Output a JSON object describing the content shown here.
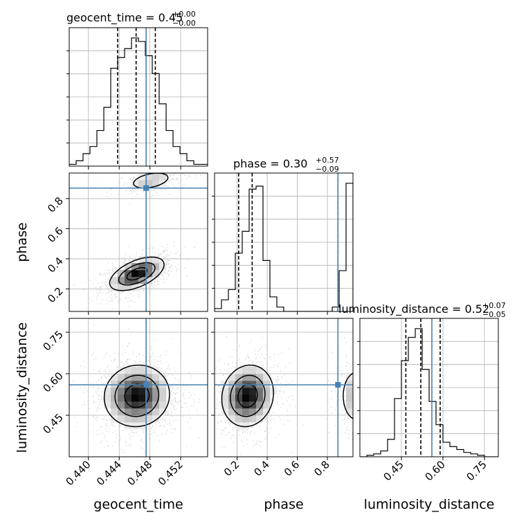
{
  "chart_data": {
    "type": "corner",
    "truth_color": "#4682b4",
    "contour_color": "#000000",
    "grid": true,
    "parameters": [
      {
        "name": "geocent_time",
        "label": "geocent_time",
        "title_prefix": "geocent_time = 0.45",
        "title_plus": "+0.00",
        "title_minus": "−0.00",
        "range": [
          0.4375,
          0.4555
        ],
        "ticks": [
          0.44,
          0.444,
          0.448,
          0.452
        ],
        "tick_labels": [
          "0.440",
          "0.444",
          "0.448",
          "0.452"
        ],
        "truth": 0.4475,
        "quantiles": [
          0.4438,
          0.4462,
          0.4487
        ],
        "hist": {
          "edges_start": 0.4375,
          "bin_width": 0.0009,
          "counts": [
            1,
            3,
            7,
            11,
            20,
            33,
            55,
            61,
            66,
            72,
            70,
            62,
            52,
            35,
            20,
            11,
            7,
            3,
            1,
            1
          ]
        }
      },
      {
        "name": "phase",
        "label": "phase",
        "title_prefix": "phase = 0.30",
        "title_plus": "+0.57",
        "title_minus": "−0.09",
        "range": [
          0.05,
          0.97
        ],
        "ticks": [
          0.2,
          0.4,
          0.6,
          0.8
        ],
        "tick_labels": [
          "0.2",
          "0.4",
          "0.6",
          "0.8"
        ],
        "truth": 0.87,
        "quantiles": [
          0.21,
          0.3,
          0.87
        ],
        "hist": {
          "edges_start": 0.05,
          "bin_width": 0.046,
          "counts": [
            2,
            8,
            15,
            40,
            55,
            84,
            86,
            35,
            10,
            3,
            0,
            0,
            0,
            0,
            0,
            0,
            0,
            3,
            28,
            88
          ]
        }
      },
      {
        "name": "luminosity_distance",
        "label": "luminosity_distance",
        "title_prefix": "luminosity_distance = 0.52",
        "title_plus": "+0.07",
        "title_minus": "−0.05",
        "range": [
          0.3,
          0.8
        ],
        "ticks": [
          0.45,
          0.6,
          0.75
        ],
        "tick_labels": [
          "0.45",
          "0.60",
          "0.75"
        ],
        "truth": 0.56,
        "quantiles": [
          0.466,
          0.52,
          0.59
        ],
        "hist": {
          "edges_start": 0.3,
          "bin_width": 0.025,
          "counts": [
            0,
            1,
            2,
            4,
            12,
            40,
            66,
            82,
            88,
            60,
            38,
            22,
            10,
            7,
            5,
            3,
            2,
            1,
            0,
            0
          ]
        }
      }
    ],
    "pairs": [
      {
        "x": "geocent_time",
        "y": "phase",
        "modes": [
          {
            "cx": 0.4463,
            "cy": 0.3,
            "sx": 0.00175,
            "sy": 0.055,
            "rho": 0.55,
            "weight": 1.0
          },
          {
            "cx": 0.4481,
            "cy": 0.92,
            "sx": 0.0016,
            "sy": 0.035,
            "rho": 0.4,
            "weight": 0.35
          }
        ]
      },
      {
        "x": "geocent_time",
        "y": "luminosity_distance",
        "modes": [
          {
            "cx": 0.4463,
            "cy": 0.52,
            "sx": 0.0021,
            "sy": 0.055,
            "rho": 0.05,
            "weight": 1.0
          }
        ]
      },
      {
        "x": "phase",
        "y": "luminosity_distance",
        "modes": [
          {
            "cx": 0.27,
            "cy": 0.52,
            "sx": 0.085,
            "sy": 0.055,
            "rho": 0.1,
            "weight": 1.0
          },
          {
            "cx": 1.0,
            "cy": 0.52,
            "sx": 0.06,
            "sy": 0.055,
            "rho": 0.0,
            "weight": 0.45
          }
        ]
      }
    ]
  }
}
